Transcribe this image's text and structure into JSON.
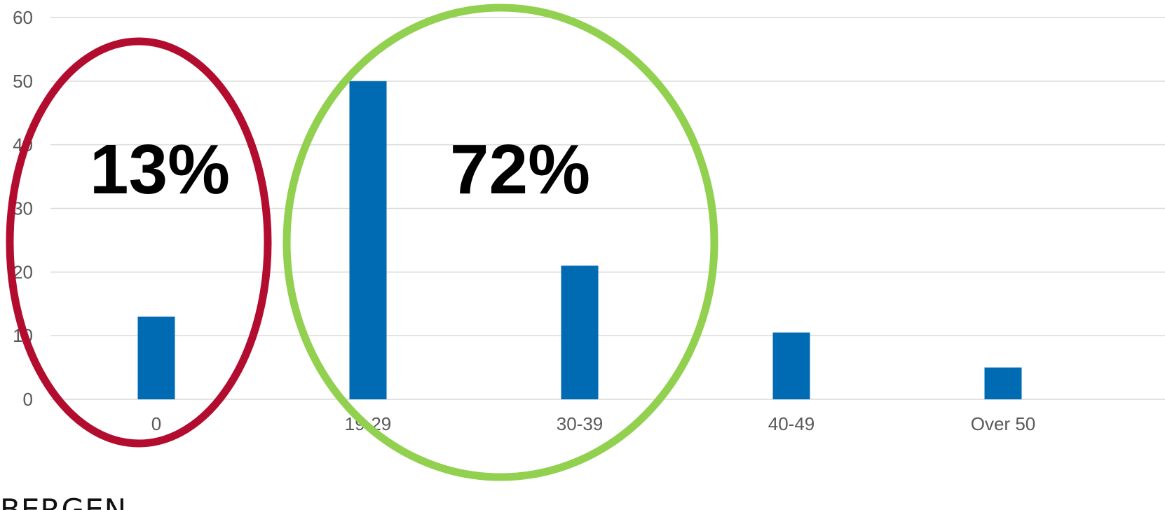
{
  "chart_data": {
    "type": "bar",
    "categories": [
      "0",
      "19-29",
      "30-39",
      "40-49",
      "Over 50"
    ],
    "values": [
      13,
      50,
      21,
      10.5,
      5
    ],
    "title": "",
    "xlabel": "",
    "ylabel": "",
    "ylim": [
      0,
      60
    ],
    "yticks": [
      0,
      10,
      20,
      30,
      40,
      50,
      60
    ],
    "grid": true,
    "legend": "none",
    "bar_color": "#006AB2",
    "annotations": [
      {
        "text": "13%",
        "outline_color": "#B20D2F",
        "encloses": [
          "0"
        ]
      },
      {
        "text": "72%",
        "outline_color": "#92D050",
        "encloses": [
          "19-29",
          "30-39"
        ]
      }
    ]
  },
  "footer": {
    "text": "BERGEN"
  },
  "colors": {
    "gridline": "#D9D9D9",
    "tick_text": "#595959",
    "annotation_text": "#000000"
  }
}
